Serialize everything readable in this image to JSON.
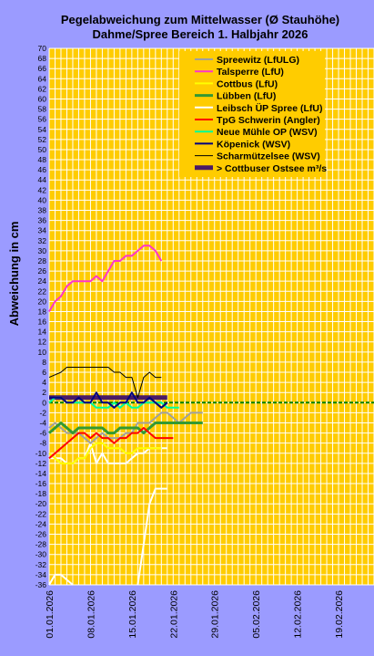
{
  "chart_data": {
    "type": "line",
    "title": "Pegelabweichung zum Mittelwasser (Ø Stauhöhe)",
    "subtitle": "Dahme/Spree Bereich 1. Halbjahr 2026",
    "ylabel": "Abweichung in cm",
    "xlabel": "",
    "ylim": [
      -36,
      70
    ],
    "ystep": 2,
    "xlim": [
      "2026-01-01",
      "2026-02-25"
    ],
    "x_ticks": [
      "01.01.2026",
      "08.01.2026",
      "15.01.2026",
      "22.01.2026",
      "29.01.2026",
      "05.02.2026",
      "12.02.2026",
      "19.02.2026"
    ],
    "grid": true,
    "legend_position": "top-right",
    "background_color": "#ffcc00",
    "grid_color": "#ffffff",
    "series": [
      {
        "name": "Spreewitz (LfULG)",
        "color": "#a0a0a0",
        "width": 2,
        "x_start": "2026-01-01",
        "values": [
          -5,
          -4,
          -5,
          -6,
          -6,
          -6,
          -7,
          -8,
          -7,
          -6,
          -7,
          -7,
          -7,
          -6,
          -6,
          -4,
          -4,
          -4,
          -3,
          -2,
          -2,
          -3,
          -4,
          -3,
          -2,
          -2,
          -2
        ]
      },
      {
        "name": "Talsperre (LfU)",
        "color": "#ff33cc",
        "width": 2,
        "x_start": "2026-01-01",
        "values": [
          18,
          20,
          21,
          23,
          24,
          24,
          24,
          24,
          25,
          24,
          26,
          28,
          28,
          29,
          29,
          30,
          31,
          31,
          30,
          28
        ]
      },
      {
        "name": "Cottbus (LfU)",
        "color": "#ffff00",
        "width": 2,
        "x_start": "2026-01-01",
        "values": [
          -10,
          -11,
          -12,
          -12,
          -12,
          -11,
          -11,
          -9,
          -8,
          -8,
          -9,
          -9,
          -9,
          -10,
          -10,
          -9,
          -9,
          -9,
          -9,
          -9
        ]
      },
      {
        "name": "Lübben (LfU)",
        "color": "#339933",
        "width": 3,
        "x_start": "2026-01-01",
        "values": [
          -6,
          -5,
          -4,
          -5,
          -6,
          -5,
          -5,
          -5,
          -5,
          -5,
          -6,
          -6,
          -5,
          -5,
          -5,
          -5,
          -6,
          -5,
          -4,
          -4,
          -4,
          -4,
          -4,
          -4,
          -4,
          -4,
          -4
        ]
      },
      {
        "name": "Leibsch ÜP Spree (LfU)",
        "color": "#ffffff",
        "width": 2,
        "x_start": "2026-01-01",
        "values": [
          -11,
          -11,
          -11,
          -12,
          -12,
          -11,
          -11,
          -8,
          -12,
          -10,
          -12,
          -12,
          -12,
          -12,
          -11,
          -10,
          -10,
          -9,
          -9,
          -9,
          -9
        ]
      },
      {
        "name": "TpG Schwerin (Angler)",
        "color": "#ff0000",
        "width": 2,
        "x_start": "2026-01-01",
        "values": [
          -11,
          -10,
          -9,
          -8,
          -7,
          -6,
          -6,
          -7,
          -6,
          -7,
          -7,
          -8,
          -7,
          -7,
          -6,
          -6,
          -5,
          -6,
          -7,
          -7,
          -7,
          -7
        ]
      },
      {
        "name": "Neue Mühle OP (WSV)",
        "color": "#00ff99",
        "width": 2,
        "x_start": "2026-01-01",
        "values": [
          0,
          1,
          1,
          0,
          0,
          0,
          0,
          0,
          -1,
          -1,
          -1,
          0,
          -1,
          0,
          -1,
          -1,
          0,
          0,
          0,
          0,
          -1,
          -1,
          -1
        ]
      },
      {
        "name": "Köpenick (WSV)",
        "color": "#000080",
        "width": 2,
        "x_start": "2026-01-01",
        "values": [
          1,
          1,
          1,
          0,
          0,
          1,
          0,
          0,
          2,
          0,
          0,
          -1,
          0,
          0,
          2,
          0,
          0,
          1,
          0,
          -1,
          0
        ]
      },
      {
        "name": "Scharmützelsee (WSV)",
        "color": "#000000",
        "width": 1,
        "x_start": "2026-01-01",
        "values": [
          5,
          5.5,
          6,
          7,
          7,
          7,
          7,
          7,
          7,
          7,
          7,
          6,
          6,
          5,
          5,
          1,
          5,
          6,
          5,
          5
        ]
      },
      {
        "name": "> Cottbuser Ostsee m³/s",
        "color": "#4a1a66",
        "width": 5,
        "x_start": "2026-01-01",
        "values": [
          1,
          1,
          1,
          1,
          1,
          1,
          1,
          1,
          1,
          1,
          1,
          1,
          1,
          1,
          1,
          1,
          1,
          1,
          1,
          1,
          1
        ]
      },
      {
        "name": "",
        "color": "#ffffff",
        "width": 2,
        "x_start": "2026-01-01",
        "values": [
          -36,
          -34,
          -34,
          -35,
          -36,
          null,
          null,
          null,
          null,
          null,
          null,
          null,
          null,
          null,
          null,
          -36,
          -28,
          -20,
          -17,
          -17,
          -17
        ]
      },
      {
        "name": "",
        "color": "#008000",
        "width": 2,
        "dashed": true,
        "x_start": "2026-01-01",
        "values": [
          0,
          0,
          0,
          0,
          0,
          0,
          0,
          0,
          0,
          0,
          0,
          0,
          0,
          0,
          0,
          0,
          0,
          0,
          0,
          0,
          0,
          0,
          0,
          0,
          0,
          0,
          0,
          0,
          0,
          0,
          0,
          0,
          0,
          0,
          0,
          0,
          0,
          0,
          0,
          0,
          0,
          0,
          0,
          0,
          0,
          0,
          0,
          0,
          0,
          0,
          0,
          0,
          0,
          0,
          0,
          0
        ]
      }
    ],
    "legend_entries": [
      0,
      1,
      2,
      3,
      4,
      5,
      6,
      7,
      8,
      9
    ]
  }
}
